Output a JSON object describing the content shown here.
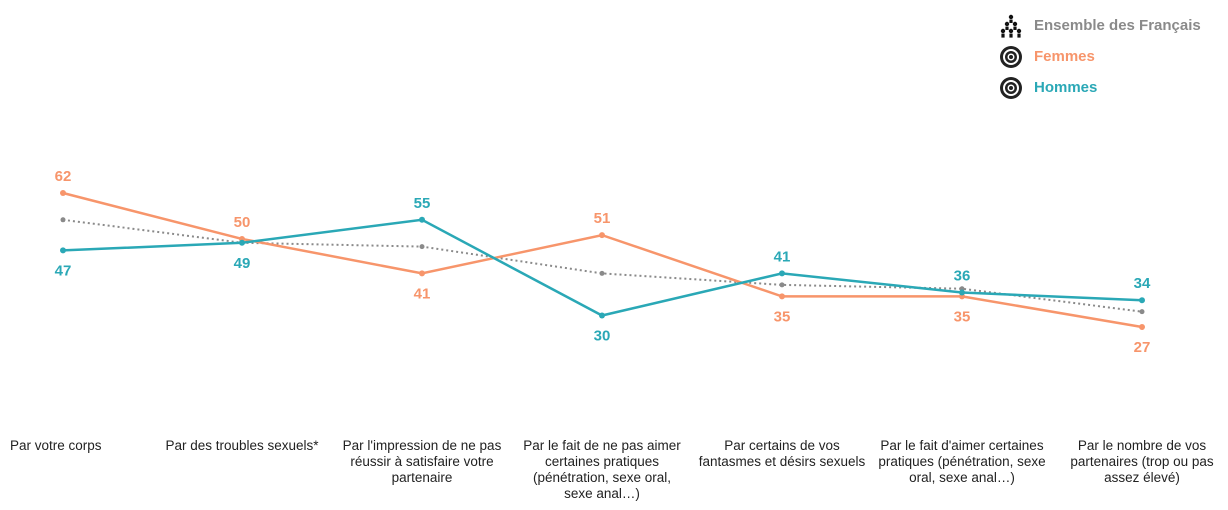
{
  "chart_data": {
    "type": "line",
    "title": "",
    "xlabel": "",
    "ylabel": "",
    "ylim": [
      10,
      75
    ],
    "grid": false,
    "legend_position": "top-right",
    "categories": [
      "Par votre corps",
      "Par des troubles sexuels*",
      "Par l'impression de ne pas réussir à satisfaire votre partenaire",
      "Par le fait de ne pas aimer certaines pratiques (pénétration, sexe oral, sexe anal…)",
      "Par certains de vos fantasmes et désirs sexuels",
      "Par le fait d'aimer certaines pratiques (pénétration, sexe oral, sexe anal…)",
      "Par le nombre de vos partenaires (trop ou pas assez élevé)"
    ],
    "series": [
      {
        "name": "Ensemble des Français",
        "values": [
          55,
          49,
          48,
          41,
          38,
          37,
          31
        ],
        "color": "#8a8a8a",
        "style": "dotted",
        "labels": false,
        "icon": "people-pyramid-icon"
      },
      {
        "name": "Femmes",
        "values": [
          62,
          50,
          41,
          51,
          35,
          35,
          27
        ],
        "color": "#f7956b",
        "style": "solid",
        "labels": true,
        "icon": "target-icon"
      },
      {
        "name": "Hommes",
        "values": [
          47,
          49,
          55,
          30,
          41,
          36,
          34
        ],
        "color": "#2aa8b6",
        "style": "solid",
        "labels": true,
        "icon": "target-icon"
      }
    ]
  }
}
